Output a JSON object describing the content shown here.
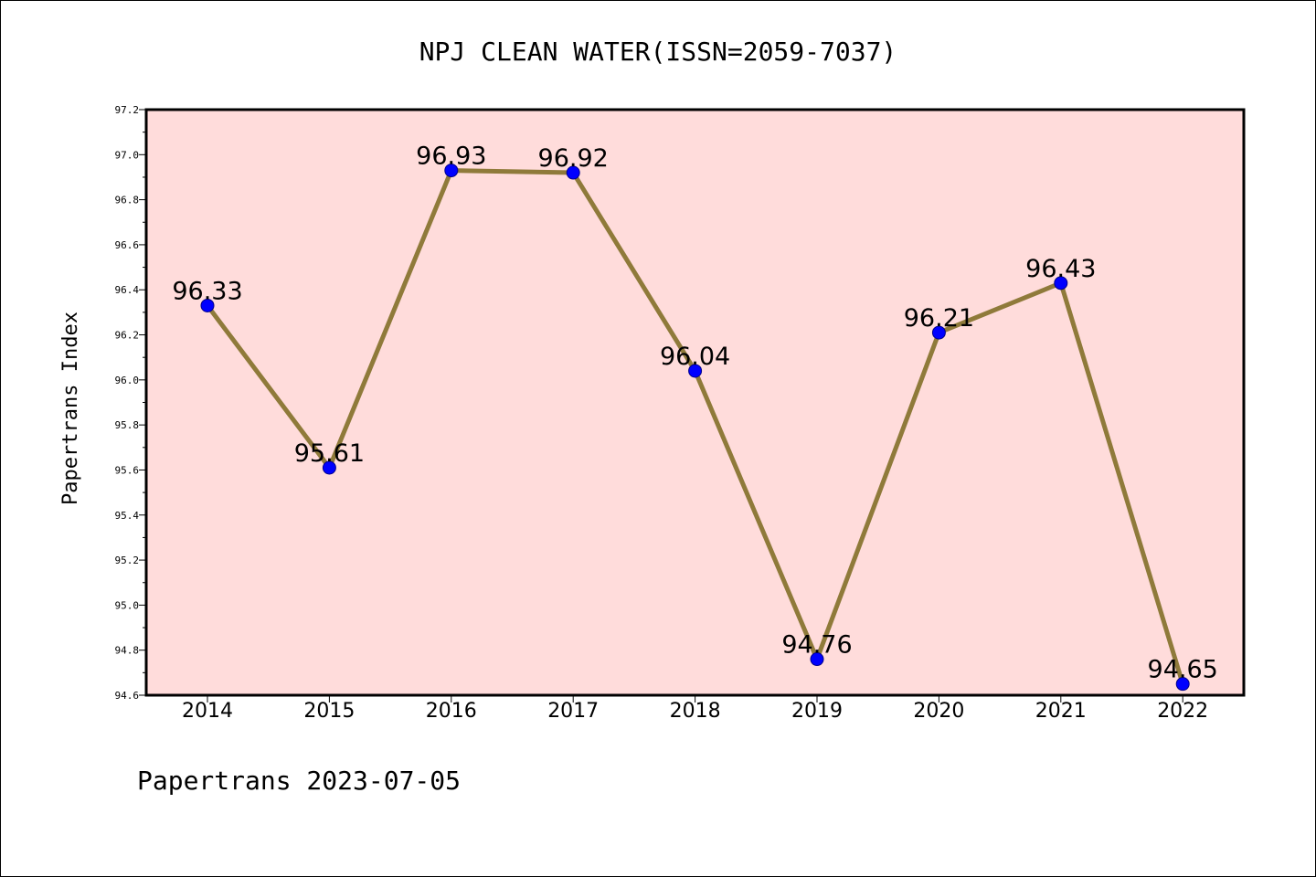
{
  "chart_data": {
    "type": "line",
    "title": "NPJ CLEAN WATER(ISSN=2059-7037)",
    "xlabel": "",
    "ylabel": "Papertrans Index",
    "categories": [
      "2014",
      "2015",
      "2016",
      "2017",
      "2018",
      "2019",
      "2020",
      "2021",
      "2022"
    ],
    "series": [
      {
        "values": [
          96.33,
          95.61,
          96.93,
          96.92,
          96.04,
          94.76,
          96.21,
          96.43,
          94.65
        ],
        "line_color": "#8f7a3a",
        "marker_color": "#0000ff"
      }
    ],
    "data_labels": [
      "96.33",
      "95.61",
      "96.93",
      "96.92",
      "96.04",
      "94.76",
      "96.21",
      "96.43",
      "94.65"
    ],
    "ylim": [
      94.6,
      97.2
    ],
    "yticks": [
      "94.6",
      "94.8",
      "95.0",
      "95.2",
      "95.4",
      "95.6",
      "95.8",
      "96.0",
      "96.2",
      "96.4",
      "96.6",
      "96.8",
      "97.0",
      "97.2"
    ],
    "plot_background": "#ffdcdb",
    "grid": false,
    "legend": "none"
  },
  "footer": "Papertrans 2023-07-05"
}
